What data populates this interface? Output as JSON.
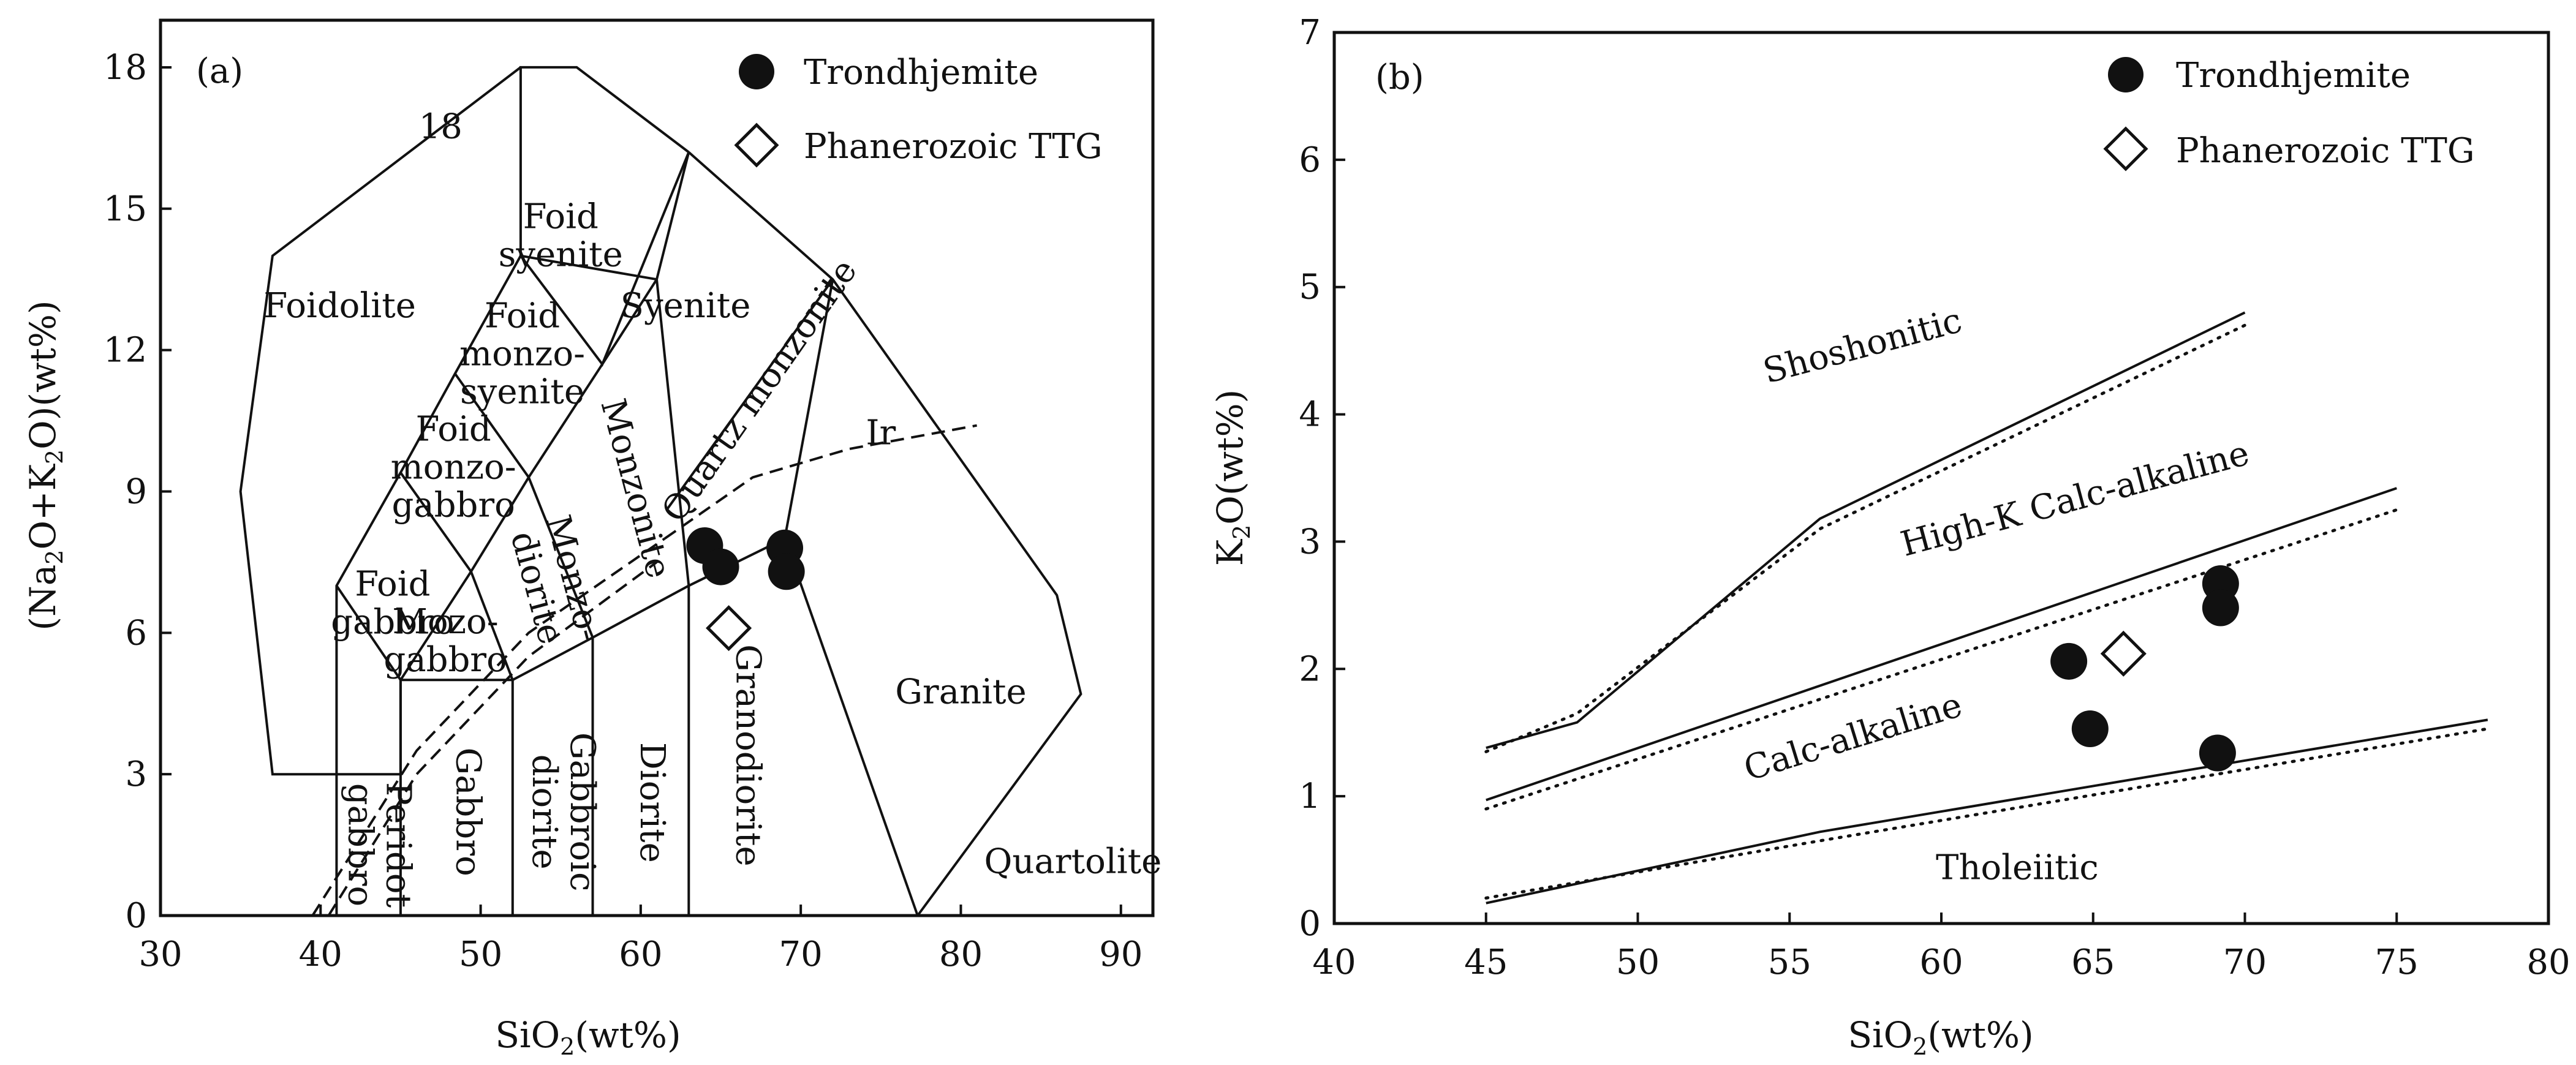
{
  "chart_data": [
    {
      "id": "a",
      "type": "scatter",
      "panel_label": "(a)",
      "title": "",
      "xlabel": "SiO2(wt%)",
      "ylabel": "(Na2O+K2O)(wt%)",
      "xlim": [
        30,
        92
      ],
      "ylim": [
        0,
        19
      ],
      "xticks": [
        30,
        40,
        50,
        60,
        70,
        80,
        90
      ],
      "yticks": [
        0,
        3,
        6,
        9,
        12,
        15,
        18
      ],
      "legend": [
        "Trondhjemite",
        "Phanerozoic TTG"
      ],
      "legend_position": "top-right",
      "series": [
        {
          "name": "Trondhjemite",
          "marker": "filled-circle",
          "x": [
            64.0,
            65.0,
            69.0,
            69.1
          ],
          "y": [
            7.85,
            7.4,
            7.8,
            7.3
          ]
        },
        {
          "name": "Phanerozoic TTG",
          "marker": "open-diamond",
          "x": [
            65.5
          ],
          "y": [
            6.1
          ]
        }
      ],
      "field_boundaries": [
        [
          [
            41,
            0
          ],
          [
            41,
            7
          ],
          [
            45,
            9.4
          ],
          [
            48.4,
            11.5
          ],
          [
            52.5,
            14
          ],
          [
            57.6,
            11.7
          ],
          [
            63,
            16.2
          ]
        ],
        [
          [
            45,
            0
          ],
          [
            45,
            5
          ],
          [
            49.4,
            7.3
          ],
          [
            53,
            9.3
          ],
          [
            57.6,
            11.7
          ],
          [
            61,
            13.5
          ],
          [
            63,
            16.2
          ]
        ],
        [
          [
            41,
            3
          ],
          [
            45,
            3
          ],
          [
            45,
            5
          ],
          [
            52,
            5
          ],
          [
            57,
            5.9
          ],
          [
            63,
            7
          ],
          [
            69,
            8
          ],
          [
            77.3,
            0
          ]
        ],
        [
          [
            52,
            0
          ],
          [
            52,
            5
          ]
        ],
        [
          [
            57,
            0
          ],
          [
            57,
            5.9
          ]
        ],
        [
          [
            63,
            0
          ],
          [
            63,
            7
          ]
        ],
        [
          [
            41,
            7
          ],
          [
            45,
            5
          ]
        ],
        [
          [
            45,
            9.4
          ],
          [
            49.4,
            7.3
          ],
          [
            52,
            5
          ]
        ],
        [
          [
            48.4,
            11.5
          ],
          [
            53,
            9.3
          ],
          [
            57,
            5.9
          ]
        ],
        [
          [
            52.5,
            14
          ],
          [
            61,
            13.5
          ]
        ],
        [
          [
            61,
            13.5
          ],
          [
            63,
            7
          ]
        ],
        [
          [
            61.6,
            8.6
          ],
          [
            72,
            13.5
          ],
          [
            69,
            8
          ]
        ],
        [
          [
            63,
            16.2
          ],
          [
            72,
            13.5
          ],
          [
            86,
            6.8
          ],
          [
            87.5,
            4.7
          ],
          [
            77.3,
            0
          ]
        ],
        [
          [
            52.5,
            14
          ],
          [
            52.5,
            18
          ],
          [
            56,
            18
          ],
          [
            63,
            16.2
          ]
        ],
        [
          [
            41,
            3
          ],
          [
            37,
            3
          ],
          [
            35,
            9
          ],
          [
            37,
            14
          ],
          [
            52.5,
            18
          ]
        ]
      ],
      "dashed_lines": [
        [
          [
            61.5,
            8.0
          ],
          [
            67,
            9.3
          ],
          [
            73,
            9.9
          ],
          [
            81,
            10.4
          ]
        ],
        [
          [
            39.5,
            0
          ],
          [
            46,
            3.5
          ],
          [
            53,
            6
          ],
          [
            61.5,
            8.0
          ]
        ],
        [
          [
            40.5,
            0
          ],
          [
            46,
            3.0
          ],
          [
            53,
            5.5
          ],
          [
            61,
            7.5
          ]
        ]
      ],
      "annotations": [
        {
          "text": "18",
          "x": 47.5,
          "y": 16.5
        },
        {
          "text": "Foidolite",
          "x": 41.2,
          "y": 12.7
        },
        {
          "text": "Foid syenite",
          "x": 55,
          "y": 14.2,
          "lines": [
            "Foid",
            "syenite"
          ]
        },
        {
          "text": "Syenite",
          "x": 62.8,
          "y": 12.7
        },
        {
          "text": "Foid monzo- syenite",
          "x": 52.6,
          "y": 11.7,
          "lines": [
            "Foid",
            "monzo-",
            "syenite"
          ]
        },
        {
          "text": "Foid monzo- gabbro",
          "x": 48.3,
          "y": 9.3,
          "lines": [
            "Foid",
            "monzo-",
            "gabbro"
          ]
        },
        {
          "text": "Foid gabbro",
          "x": 44.5,
          "y": 6.4,
          "lines": [
            "Foid",
            "gabbro"
          ]
        },
        {
          "text": "Mozo- gabbro",
          "x": 47.8,
          "y": 5.6,
          "lines": [
            "Mozo-",
            "gabbro"
          ]
        },
        {
          "text": "Monzonite",
          "x": 59,
          "y": 9.0,
          "rotate": 75
        },
        {
          "text": "Monzo- diorite",
          "x": 54.0,
          "y": 7.0,
          "lines": [
            "Monzo-",
            "diorite"
          ],
          "rotate": 75
        },
        {
          "text": "Quartz monzonite",
          "x": 68,
          "y": 11.0,
          "rotate": -55
        },
        {
          "text": "Ir",
          "x": 75,
          "y": 10.0
        },
        {
          "text": "Peridot gabbro",
          "x": 43,
          "y": 1.5,
          "lines": [
            "Peridot",
            "gabbro"
          ],
          "rotate": 90
        },
        {
          "text": "Gabbro",
          "x": 48.5,
          "y": 2.2,
          "rotate": 90
        },
        {
          "text": "Gabbroic diorite",
          "x": 54.5,
          "y": 2.2,
          "lines": [
            "Gabbroic",
            "diorite"
          ],
          "rotate": 90
        },
        {
          "text": "Diorite",
          "x": 60.0,
          "y": 2.4,
          "rotate": 90
        },
        {
          "text": "Granodiorite",
          "x": 66.0,
          "y": 3.4,
          "rotate": 90
        },
        {
          "text": "Granite",
          "x": 80.0,
          "y": 4.5
        },
        {
          "text": "Quartolite",
          "x": 87.0,
          "y": 0.9
        }
      ]
    },
    {
      "id": "b",
      "type": "scatter",
      "panel_label": "(b)",
      "title": "",
      "xlabel": "SiO2(wt%)",
      "ylabel": "K2O(wt%)",
      "xlim": [
        40,
        80
      ],
      "ylim": [
        0,
        7
      ],
      "xticks": [
        40,
        45,
        50,
        55,
        60,
        65,
        70,
        75,
        80
      ],
      "yticks": [
        0,
        1,
        2,
        3,
        4,
        5,
        6,
        7
      ],
      "legend": [
        "Trondhjemite",
        "Phanerozoic TTG"
      ],
      "legend_position": "top-right",
      "series": [
        {
          "name": "Trondhjemite",
          "marker": "filled-circle",
          "x": [
            64.2,
            64.9,
            69.2,
            69.2,
            69.1
          ],
          "y": [
            2.06,
            1.53,
            2.67,
            2.48,
            1.34
          ]
        },
        {
          "name": "Phanerozoic TTG",
          "marker": "open-diamond",
          "x": [
            66.0
          ],
          "y": [
            2.12
          ]
        }
      ],
      "solid_lines": [
        [
          [
            45,
            1.38
          ],
          [
            48,
            1.58
          ],
          [
            56,
            3.18
          ],
          [
            70,
            4.8
          ]
        ],
        [
          [
            45,
            0.97
          ],
          [
            75,
            3.42
          ]
        ],
        [
          [
            45,
            0.16
          ],
          [
            56,
            0.72
          ],
          [
            78,
            1.6
          ]
        ]
      ],
      "dotted_lines": [
        [
          [
            45,
            1.35
          ],
          [
            48,
            1.65
          ],
          [
            56,
            3.1
          ],
          [
            70,
            4.7
          ]
        ],
        [
          [
            45,
            0.9
          ],
          [
            75,
            3.25
          ]
        ],
        [
          [
            45,
            0.2
          ],
          [
            56,
            0.65
          ],
          [
            78,
            1.53
          ]
        ]
      ],
      "annotations": [
        {
          "text": "Shoshonitic",
          "x": 57.5,
          "y": 4.45,
          "rotate": -15
        },
        {
          "text": "High-K Calc-alkaline",
          "x": 64.5,
          "y": 3.25,
          "rotate": -15
        },
        {
          "text": "Calc-alkaline",
          "x": 57.2,
          "y": 1.38,
          "rotate": -17
        },
        {
          "text": "Tholeiitic",
          "x": 62.5,
          "y": 0.35
        }
      ]
    }
  ]
}
